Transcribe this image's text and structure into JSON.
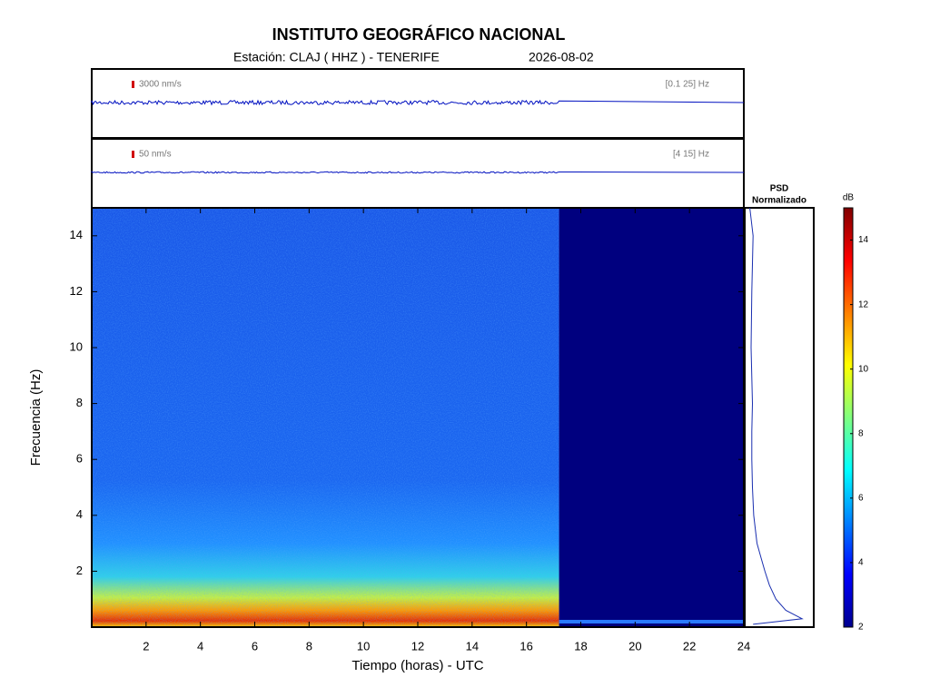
{
  "header": {
    "title": "INSTITUTO GEOGRÁFICO NACIONAL",
    "station": "Estación:  CLAJ ( HHZ ) - TENERIFE",
    "date": "2026-08-02"
  },
  "chart_data": [
    {
      "type": "seismogram",
      "scale_label": "3000 nm/s",
      "band_label": "[0.1 25] Hz"
    },
    {
      "type": "seismogram",
      "scale_label": "50 nm/s",
      "band_label": "[4 15] Hz"
    },
    {
      "type": "spectrogram",
      "xlabel": "Tiempo (horas) - UTC",
      "ylabel": "Frecuencia  (Hz)",
      "xlim": [
        0,
        24
      ],
      "xticks": [
        2,
        4,
        6,
        8,
        10,
        12,
        14,
        16,
        18,
        20,
        22,
        24
      ],
      "ylim": [
        0,
        15
      ],
      "yticks": [
        2,
        4,
        6,
        8,
        10,
        12,
        14
      ],
      "recording_end": 17.2
    },
    {
      "type": "psd",
      "title": "PSD",
      "subtitle": "Normalizado",
      "color": "#1a2fb0",
      "xlim": [
        0,
        1
      ],
      "frequencies": [
        0.1,
        0.3,
        0.6,
        1,
        1.5,
        2,
        2.5,
        3,
        4,
        5,
        6,
        7,
        8,
        10,
        12,
        14,
        15
      ],
      "values": [
        0.1,
        0.85,
        0.6,
        0.45,
        0.35,
        0.28,
        0.22,
        0.16,
        0.11,
        0.09,
        0.08,
        0.08,
        0.09,
        0.07,
        0.08,
        0.1,
        0.05
      ]
    },
    {
      "type": "colorbar",
      "label": "dB",
      "ylim": [
        2,
        15
      ],
      "yticks": [
        2,
        4,
        6,
        8,
        10,
        12,
        14
      ]
    }
  ]
}
